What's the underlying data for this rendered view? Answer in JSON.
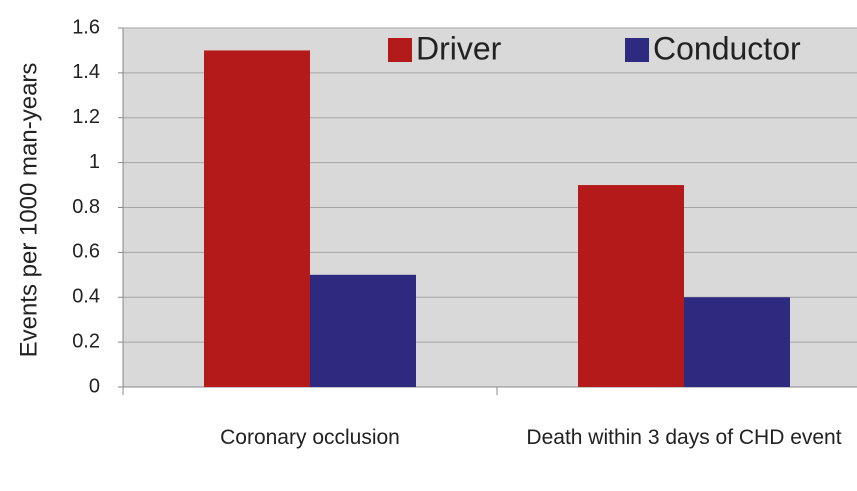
{
  "chart_data": {
    "type": "bar",
    "ylabel": "Events  per 1000 man-years",
    "categories": [
      "Coronary occlusion",
      "Death within 3 days of CHD event"
    ],
    "series": [
      {
        "name": "Driver",
        "color": "#b51a1a",
        "values": [
          1.5,
          0.9
        ]
      },
      {
        "name": "Conductor",
        "color": "#2e2a7f",
        "values": [
          0.5,
          0.4
        ]
      }
    ],
    "ylim": [
      0,
      1.6
    ],
    "yticks": [
      0,
      0.2,
      0.4,
      0.6,
      0.8,
      1,
      1.2,
      1.4,
      1.6
    ],
    "grid": true,
    "legend": "top-right"
  }
}
